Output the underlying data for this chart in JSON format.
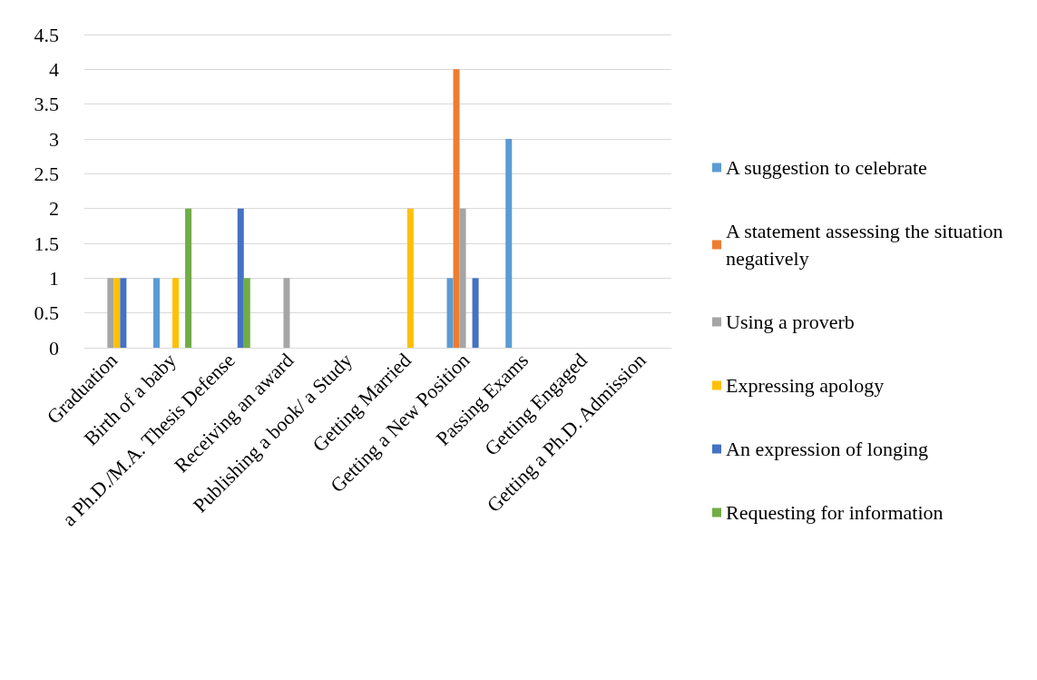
{
  "chart_data": {
    "type": "bar",
    "categories": [
      "Graduation",
      "Birth of a baby",
      "a Ph.D./M.A. Thesis Defense",
      "Receiving an award",
      "Publishing a book/ a Study",
      "Getting Married",
      "Getting a New Position",
      "Passing Exams",
      "Getting Engaged",
      "Getting a Ph.D. Admission"
    ],
    "series": [
      {
        "name": "A suggestion to celebrate",
        "color": "#5b9bd5",
        "values": [
          0,
          1,
          0,
          0,
          0,
          0,
          1,
          3,
          0,
          0
        ]
      },
      {
        "name": "A statement assessing the situation negatively",
        "color": "#ed7d31",
        "values": [
          0,
          0,
          0,
          0,
          0,
          0,
          4,
          0,
          0,
          0
        ]
      },
      {
        "name": "Using a proverb",
        "color": "#a5a5a5",
        "values": [
          1,
          0,
          0,
          1,
          0,
          0,
          2,
          0,
          0,
          0
        ]
      },
      {
        "name": "Expressing apology",
        "color": "#ffc000",
        "values": [
          1,
          1,
          0,
          0,
          0,
          2,
          0,
          0,
          0,
          0
        ]
      },
      {
        "name": "An expression of longing",
        "color": "#4472c4",
        "values": [
          1,
          0,
          2,
          0,
          0,
          0,
          1,
          0,
          0,
          0
        ]
      },
      {
        "name": "Requesting for information",
        "color": "#70ad47",
        "values": [
          0,
          2,
          1,
          0,
          0,
          0,
          0,
          0,
          0,
          0
        ]
      }
    ],
    "ylim": [
      0,
      4.5
    ],
    "yticks": [
      0,
      0.5,
      1,
      1.5,
      2,
      2.5,
      3,
      3.5,
      4,
      4.5
    ],
    "grid": "y",
    "legend": "right"
  }
}
